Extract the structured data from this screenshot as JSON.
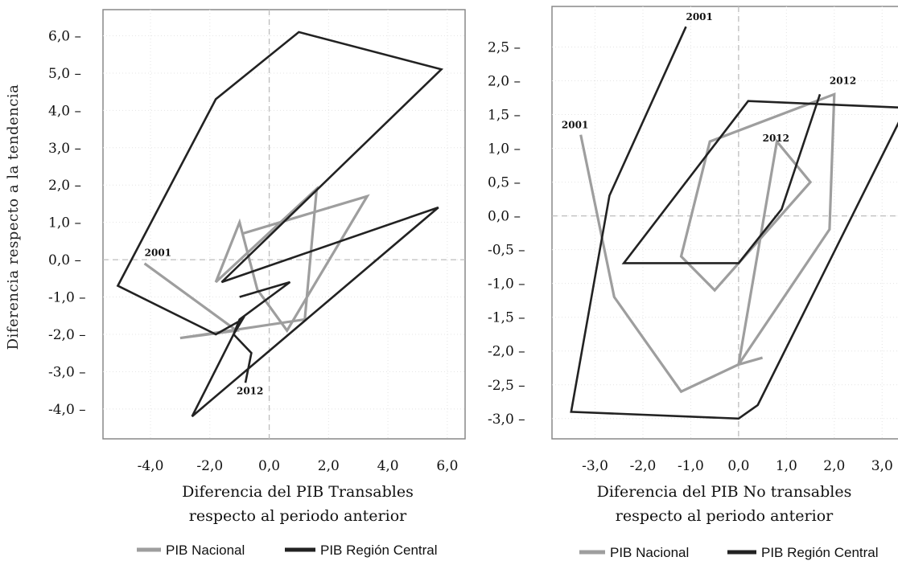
{
  "chart_data": [
    {
      "type": "line",
      "xlabel_lines": [
        "Diferencia del PIB Transables",
        "respecto al periodo anterior"
      ],
      "ylabel": "Diferencia respecto a la tendencia",
      "xlim": [
        -5.6,
        6.6
      ],
      "ylim": [
        -4.8,
        6.7
      ],
      "xticks": [
        -4,
        -2,
        0,
        2,
        4,
        6
      ],
      "xtick_labels": [
        "-4,0",
        "-2,0",
        "0,0",
        "2,0",
        "4,0",
        "6,0"
      ],
      "yticks": [
        6,
        5,
        4,
        3,
        2,
        1,
        0,
        -1,
        -2,
        -3,
        -4
      ],
      "ytick_labels": [
        "6,0 –",
        "5,0 –",
        "4,0 –",
        "3,0 –",
        "2,0 –",
        "1,0 –",
        "0,0 –",
        "-1,0 –",
        "-2,0 –",
        "-3,0 –",
        "-4,0 –"
      ],
      "grid": "dashed zero lines and dotted gridlines",
      "series": [
        {
          "name": "PIB Nacional",
          "color": "#9e9e9e",
          "x": [
            -4.2,
            -1.1,
            -3.0,
            1.2,
            1.6,
            -1.8,
            -1.0,
            -0.4,
            0.6,
            3.3,
            -0.9
          ],
          "y": [
            -0.1,
            -1.9,
            -2.1,
            -1.6,
            1.9,
            -0.6,
            1.0,
            -0.8,
            -1.9,
            1.7,
            0.7
          ]
        },
        {
          "name": "PIB Región Central",
          "color": "#222222",
          "x": [
            -0.8,
            -0.6,
            -1.2,
            -0.9,
            -1.8,
            -5.1,
            -1.8,
            1.0,
            5.8,
            -1.6,
            5.7,
            -2.6,
            -1.2,
            -1.0,
            0.7,
            -1.0
          ],
          "y": [
            -3.3,
            -2.5,
            -2.0,
            -1.6,
            -2.0,
            -0.7,
            4.3,
            6.1,
            5.1,
            -0.6,
            1.4,
            -4.2,
            -2.0,
            -1.6,
            -0.6,
            -1.0
          ]
        }
      ],
      "annotations": [
        {
          "text": "2001",
          "x": -4.2,
          "y": 0.1
        },
        {
          "text": "2012",
          "x": -1.1,
          "y": -3.6
        }
      ],
      "legend": "bottom",
      "legend_labels": [
        "PIB Nacional",
        "PIB Región Central"
      ]
    },
    {
      "type": "line",
      "xlabel_lines": [
        "Diferencia del PIB No transables",
        "respecto al periodo anterior"
      ],
      "ylabel": "",
      "xlim": [
        -3.9,
        3.5
      ],
      "ylim": [
        -3.3,
        3.1
      ],
      "xticks": [
        -3,
        -2,
        -1,
        0,
        1,
        2,
        3
      ],
      "xtick_labels": [
        "-3,0",
        "-2,0",
        "-1,0",
        "0,0",
        "1,0",
        "2,0",
        "3,0"
      ],
      "yticks": [
        2.5,
        2.0,
        1.5,
        1.0,
        0.5,
        0.0,
        -0.5,
        -1.0,
        -1.5,
        -2.0,
        -2.5,
        -3.0
      ],
      "ytick_labels": [
        "2,5 –",
        "2,0 –",
        "1,5 –",
        "1,0 –",
        "0,5 –",
        "0,0 –",
        "-0,5 –",
        "-1,0 –",
        "-1,5 –",
        "-2,0 –",
        "-2,5 –",
        "-3,0 –"
      ],
      "grid": "dashed zero lines and dotted gridlines",
      "series": [
        {
          "name": "PIB Nacional",
          "color": "#9e9e9e",
          "x": [
            -3.3,
            -2.6,
            -1.2,
            0.0,
            1.9,
            2.0,
            -0.6,
            -1.2,
            -0.5,
            1.5,
            0.8,
            0.0,
            0.5
          ],
          "y": [
            1.2,
            -1.2,
            -2.6,
            -2.2,
            -0.2,
            1.8,
            1.1,
            -0.6,
            -1.1,
            0.5,
            1.1,
            -2.2,
            -2.1
          ]
        },
        {
          "name": "PIB Región Central",
          "color": "#222222",
          "x": [
            -1.1,
            -2.7,
            -3.5,
            0.0,
            0.4,
            3.5,
            0.2,
            -2.4,
            0.0,
            0.9,
            1.7
          ],
          "y": [
            2.8,
            0.3,
            -2.9,
            -3.0,
            -2.8,
            1.6,
            1.7,
            -0.7,
            -0.7,
            0.1,
            1.8
          ]
        }
      ],
      "annotations": [
        {
          "text": "2001",
          "x": -1.1,
          "y": 2.9
        },
        {
          "text": "2001",
          "x": -3.7,
          "y": 1.3
        },
        {
          "text": "2012",
          "x": 1.9,
          "y": 1.95
        },
        {
          "text": "2012",
          "x": 0.5,
          "y": 1.1
        }
      ],
      "legend": "bottom",
      "legend_labels": [
        "PIB Nacional",
        "PIB Región Central"
      ]
    }
  ]
}
